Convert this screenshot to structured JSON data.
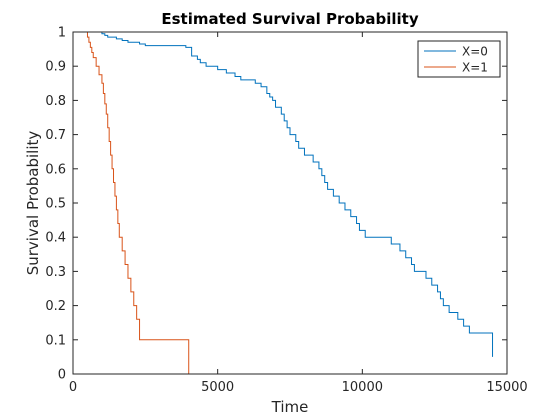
{
  "chart_data": {
    "type": "line",
    "title": "Estimated Survival Probability",
    "xlabel": "Time",
    "ylabel": "Survival Probability",
    "xlim": [
      0,
      15000
    ],
    "ylim": [
      0,
      1
    ],
    "xticks": [
      0,
      5000,
      10000,
      15000
    ],
    "xtick_labels": [
      "0",
      "5000",
      "10000",
      "15000"
    ],
    "yticks": [
      0,
      0.1,
      0.2,
      0.3,
      0.4,
      0.5,
      0.6,
      0.7,
      0.8,
      0.9,
      1
    ],
    "ytick_labels": [
      "0",
      "0.1",
      "0.2",
      "0.3",
      "0.4",
      "0.5",
      "0.6",
      "0.7",
      "0.8",
      "0.9",
      "1"
    ],
    "grid": false,
    "legend_position": "top-right",
    "series": [
      {
        "name": "X=0",
        "color": "#0072BD",
        "x": [
          450,
          1000,
          1100,
          1200,
          1500,
          1700,
          1900,
          2300,
          2500,
          3900,
          4100,
          4300,
          4400,
          4600,
          5000,
          5300,
          5600,
          5800,
          6300,
          6500,
          6700,
          6800,
          6900,
          7000,
          7200,
          7300,
          7400,
          7500,
          7700,
          7800,
          8000,
          8300,
          8500,
          8600,
          8700,
          8800,
          9000,
          9200,
          9400,
          9600,
          9800,
          9900,
          10100,
          11000,
          11300,
          11500,
          11700,
          11800,
          12200,
          12400,
          12600,
          12700,
          12800,
          13000,
          13300,
          13500,
          13700,
          14000,
          14500
        ],
        "y": [
          1,
          0.995,
          0.99,
          0.985,
          0.98,
          0.975,
          0.97,
          0.965,
          0.96,
          0.955,
          0.93,
          0.92,
          0.91,
          0.9,
          0.89,
          0.88,
          0.87,
          0.86,
          0.85,
          0.84,
          0.82,
          0.81,
          0.8,
          0.78,
          0.76,
          0.74,
          0.72,
          0.7,
          0.68,
          0.66,
          0.64,
          0.62,
          0.6,
          0.58,
          0.56,
          0.54,
          0.52,
          0.5,
          0.48,
          0.46,
          0.44,
          0.42,
          0.4,
          0.38,
          0.36,
          0.34,
          0.32,
          0.3,
          0.28,
          0.26,
          0.24,
          0.22,
          0.2,
          0.18,
          0.16,
          0.14,
          0.12,
          0.12,
          0.05
        ]
      },
      {
        "name": "X=1",
        "color": "#D95319",
        "x": [
          450,
          500,
          550,
          600,
          650,
          700,
          800,
          900,
          1000,
          1050,
          1100,
          1150,
          1200,
          1250,
          1300,
          1350,
          1400,
          1450,
          1500,
          1550,
          1600,
          1700,
          1800,
          1900,
          2000,
          2100,
          2200,
          2300,
          3950,
          4000
        ],
        "y": [
          1,
          0.985,
          0.97,
          0.955,
          0.94,
          0.925,
          0.9,
          0.875,
          0.85,
          0.82,
          0.79,
          0.76,
          0.72,
          0.68,
          0.64,
          0.6,
          0.56,
          0.52,
          0.48,
          0.44,
          0.4,
          0.36,
          0.32,
          0.28,
          0.24,
          0.2,
          0.16,
          0.1,
          0.1,
          0
        ]
      }
    ]
  }
}
